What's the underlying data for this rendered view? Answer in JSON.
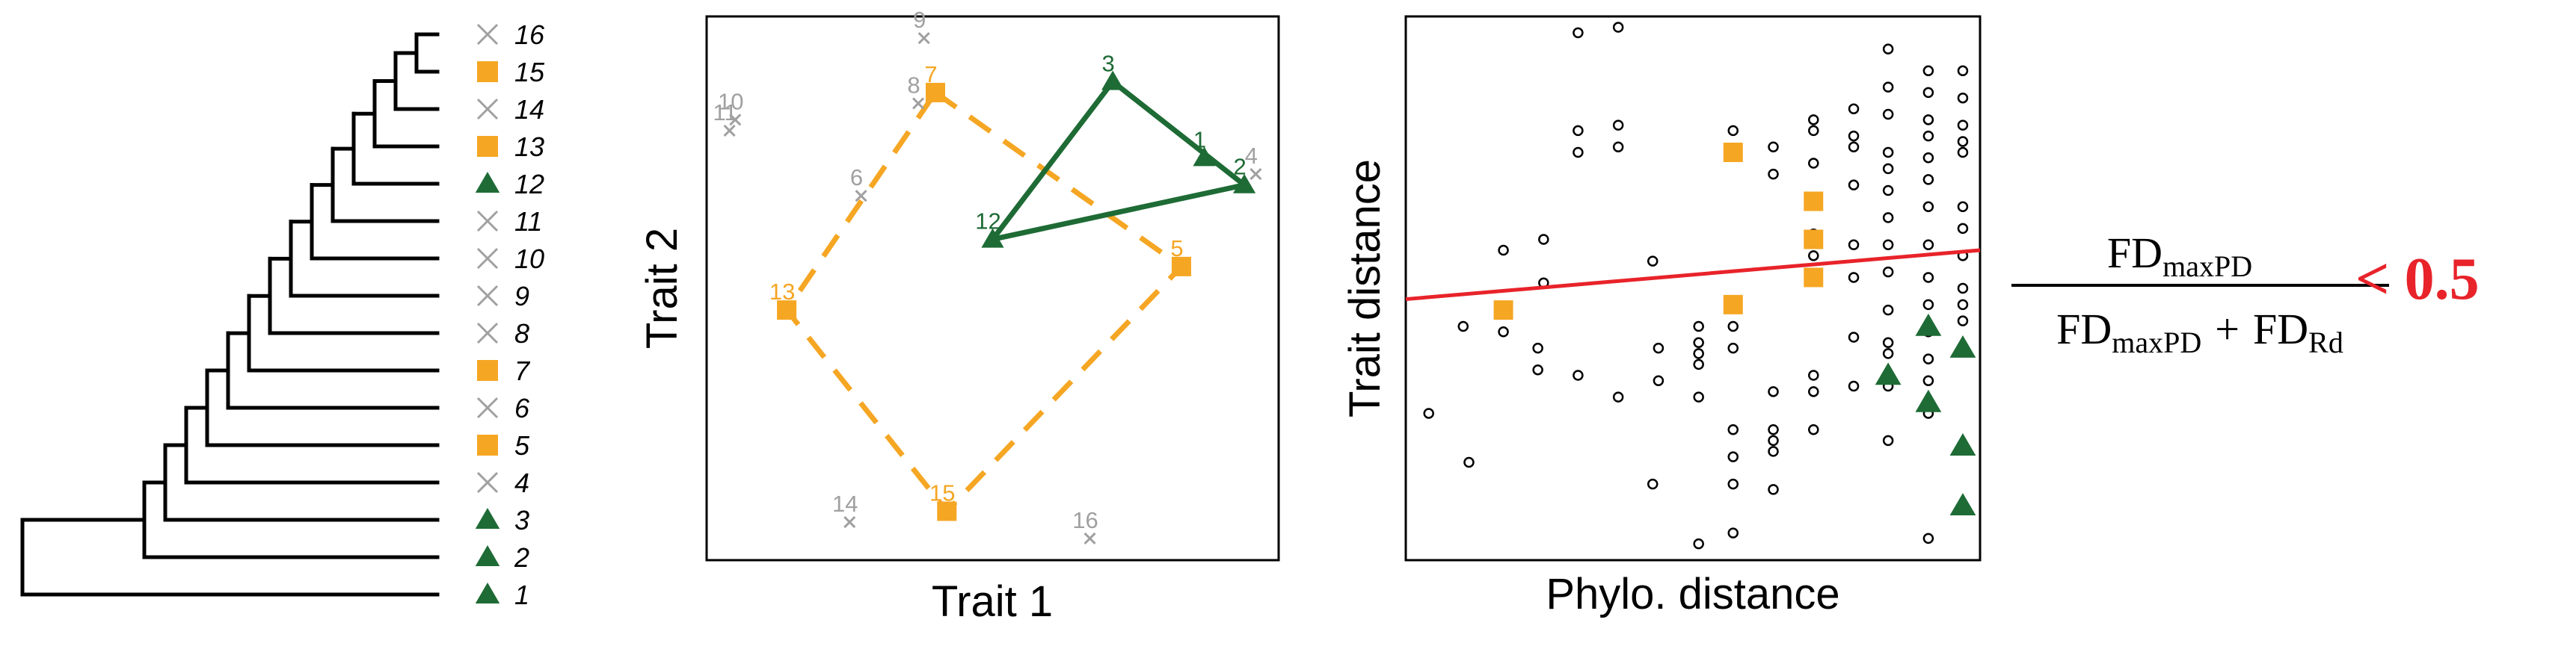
{
  "colors": {
    "orange": "#f5a623",
    "green": "#1e6b35",
    "gray": "#a0a0a0",
    "red": "#e8232a",
    "black": "#000000"
  },
  "tree": {
    "tips": [
      {
        "label": "16",
        "marker": "cross",
        "color": "gray"
      },
      {
        "label": "15",
        "marker": "square",
        "color": "orange"
      },
      {
        "label": "14",
        "marker": "cross",
        "color": "gray"
      },
      {
        "label": "13",
        "marker": "square",
        "color": "orange"
      },
      {
        "label": "12",
        "marker": "triangle",
        "color": "green"
      },
      {
        "label": "11",
        "marker": "cross",
        "color": "gray"
      },
      {
        "label": "10",
        "marker": "cross",
        "color": "gray"
      },
      {
        "label": "9",
        "marker": "cross",
        "color": "gray"
      },
      {
        "label": "8",
        "marker": "cross",
        "color": "gray"
      },
      {
        "label": "7",
        "marker": "square",
        "color": "orange"
      },
      {
        "label": "6",
        "marker": "cross",
        "color": "gray"
      },
      {
        "label": "5",
        "marker": "square",
        "color": "orange"
      },
      {
        "label": "4",
        "marker": "cross",
        "color": "gray"
      },
      {
        "label": "3",
        "marker": "triangle",
        "color": "green"
      },
      {
        "label": "2",
        "marker": "triangle",
        "color": "green"
      },
      {
        "label": "1",
        "marker": "triangle",
        "color": "green"
      }
    ]
  },
  "trait_plot": {
    "xlabel": "Trait 1",
    "ylabel": "Trait 2",
    "points": [
      {
        "label": "1",
        "group": "green",
        "x": 0.87,
        "y": 0.74
      },
      {
        "label": "2",
        "group": "green",
        "x": 0.94,
        "y": 0.69
      },
      {
        "label": "3",
        "group": "green",
        "x": 0.71,
        "y": 0.88
      },
      {
        "label": "4",
        "group": "gray",
        "x": 0.96,
        "y": 0.71
      },
      {
        "label": "5",
        "group": "orange",
        "x": 0.83,
        "y": 0.54
      },
      {
        "label": "6",
        "group": "gray",
        "x": 0.27,
        "y": 0.67
      },
      {
        "label": "7",
        "group": "orange",
        "x": 0.4,
        "y": 0.86
      },
      {
        "label": "8",
        "group": "gray",
        "x": 0.37,
        "y": 0.84
      },
      {
        "label": "9",
        "group": "gray",
        "x": 0.38,
        "y": 0.96
      },
      {
        "label": "10",
        "group": "gray",
        "x": 0.05,
        "y": 0.81
      },
      {
        "label": "11",
        "group": "gray",
        "x": 0.04,
        "y": 0.79
      },
      {
        "label": "12",
        "group": "green",
        "x": 0.5,
        "y": 0.59
      },
      {
        "label": "13",
        "group": "orange",
        "x": 0.14,
        "y": 0.46
      },
      {
        "label": "14",
        "group": "gray",
        "x": 0.25,
        "y": 0.07
      },
      {
        "label": "15",
        "group": "orange",
        "x": 0.42,
        "y": 0.09
      },
      {
        "label": "16",
        "group": "gray",
        "x": 0.67,
        "y": 0.04
      }
    ],
    "hulls": [
      {
        "group": "orange",
        "style": "dashed",
        "vertices": [
          "7",
          "5",
          "15",
          "13"
        ]
      },
      {
        "group": "green",
        "style": "solid",
        "vertices": [
          "3",
          "2",
          "12"
        ]
      }
    ]
  },
  "chart_data": {
    "type": "scatter",
    "xlabel": "Phylo. distance",
    "ylabel": "Trait distance",
    "series": [
      {
        "marker": "open-circle",
        "points": [
          [
            0.04,
            0.27
          ],
          [
            0.11,
            0.18
          ],
          [
            0.1,
            0.43
          ],
          [
            0.17,
            0.42
          ],
          [
            0.17,
            0.57
          ],
          [
            0.23,
            0.35
          ],
          [
            0.23,
            0.39
          ],
          [
            0.24,
            0.51
          ],
          [
            0.24,
            0.59
          ],
          [
            0.3,
            0.97
          ],
          [
            0.3,
            0.79
          ],
          [
            0.3,
            0.75
          ],
          [
            0.3,
            0.34
          ],
          [
            0.37,
            0.98
          ],
          [
            0.37,
            0.8
          ],
          [
            0.37,
            0.76
          ],
          [
            0.37,
            0.3
          ],
          [
            0.43,
            0.55
          ],
          [
            0.43,
            0.14
          ],
          [
            0.44,
            0.39
          ],
          [
            0.44,
            0.33
          ],
          [
            0.51,
            0.43
          ],
          [
            0.51,
            0.4
          ],
          [
            0.51,
            0.38
          ],
          [
            0.51,
            0.36
          ],
          [
            0.51,
            0.3
          ],
          [
            0.51,
            0.03
          ],
          [
            0.57,
            0.79
          ],
          [
            0.57,
            0.75
          ],
          [
            0.57,
            0.43
          ],
          [
            0.57,
            0.39
          ],
          [
            0.57,
            0.24
          ],
          [
            0.57,
            0.19
          ],
          [
            0.57,
            0.14
          ],
          [
            0.57,
            0.05
          ],
          [
            0.64,
            0.76
          ],
          [
            0.64,
            0.71
          ],
          [
            0.64,
            0.31
          ],
          [
            0.64,
            0.24
          ],
          [
            0.64,
            0.22
          ],
          [
            0.64,
            0.2
          ],
          [
            0.64,
            0.13
          ],
          [
            0.71,
            0.81
          ],
          [
            0.71,
            0.79
          ],
          [
            0.71,
            0.73
          ],
          [
            0.71,
            0.66
          ],
          [
            0.71,
            0.6
          ],
          [
            0.71,
            0.56
          ],
          [
            0.71,
            0.34
          ],
          [
            0.71,
            0.31
          ],
          [
            0.71,
            0.24
          ],
          [
            0.78,
            0.83
          ],
          [
            0.78,
            0.78
          ],
          [
            0.78,
            0.76
          ],
          [
            0.78,
            0.69
          ],
          [
            0.78,
            0.58
          ],
          [
            0.78,
            0.52
          ],
          [
            0.78,
            0.41
          ],
          [
            0.78,
            0.32
          ],
          [
            0.84,
            0.94
          ],
          [
            0.84,
            0.87
          ],
          [
            0.84,
            0.82
          ],
          [
            0.84,
            0.75
          ],
          [
            0.84,
            0.72
          ],
          [
            0.84,
            0.68
          ],
          [
            0.84,
            0.63
          ],
          [
            0.84,
            0.58
          ],
          [
            0.84,
            0.53
          ],
          [
            0.84,
            0.46
          ],
          [
            0.84,
            0.4
          ],
          [
            0.84,
            0.38
          ],
          [
            0.84,
            0.32
          ],
          [
            0.84,
            0.22
          ],
          [
            0.91,
            0.9
          ],
          [
            0.91,
            0.86
          ],
          [
            0.91,
            0.81
          ],
          [
            0.91,
            0.78
          ],
          [
            0.91,
            0.74
          ],
          [
            0.91,
            0.7
          ],
          [
            0.91,
            0.65
          ],
          [
            0.91,
            0.58
          ],
          [
            0.91,
            0.52
          ],
          [
            0.91,
            0.47
          ],
          [
            0.91,
            0.42
          ],
          [
            0.91,
            0.37
          ],
          [
            0.91,
            0.33
          ],
          [
            0.91,
            0.27
          ],
          [
            0.91,
            0.04
          ],
          [
            0.97,
            0.9
          ],
          [
            0.97,
            0.85
          ],
          [
            0.97,
            0.8
          ],
          [
            0.97,
            0.77
          ],
          [
            0.97,
            0.75
          ],
          [
            0.97,
            0.65
          ],
          [
            0.97,
            0.61
          ],
          [
            0.97,
            0.56
          ],
          [
            0.97,
            0.5
          ],
          [
            0.97,
            0.47
          ],
          [
            0.97,
            0.44
          ]
        ]
      },
      {
        "marker": "square",
        "color": "orange",
        "points": [
          [
            0.17,
            0.46
          ],
          [
            0.57,
            0.75
          ],
          [
            0.57,
            0.47
          ],
          [
            0.71,
            0.66
          ],
          [
            0.71,
            0.59
          ],
          [
            0.71,
            0.52
          ]
        ]
      },
      {
        "marker": "triangle",
        "color": "green",
        "points": [
          [
            0.84,
            0.34
          ],
          [
            0.91,
            0.43
          ],
          [
            0.91,
            0.29
          ],
          [
            0.97,
            0.39
          ],
          [
            0.97,
            0.21
          ],
          [
            0.97,
            0.1
          ]
        ]
      }
    ],
    "regression": {
      "y_at_x0": 0.48,
      "y_at_x1": 0.57,
      "color": "red"
    }
  },
  "formula": {
    "numerator_main": "FD",
    "numerator_sub": "maxPD",
    "denominator_main1": "FD",
    "denominator_sub1": "maxPD",
    "plus": "+",
    "denominator_main2": "FD",
    "denominator_sub2": "Rd",
    "result": "< 0.5"
  }
}
